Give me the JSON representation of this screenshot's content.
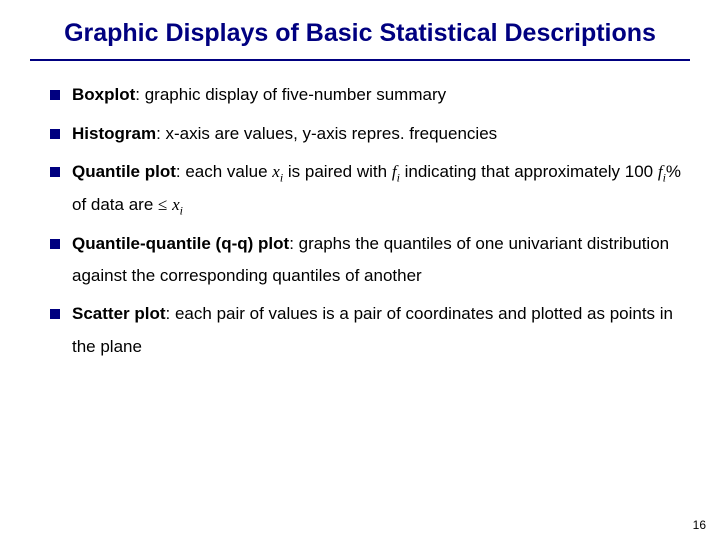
{
  "title": "Graphic Displays of Basic Statistical Descriptions",
  "bullets": [
    {
      "term": "Boxplot",
      "rest": ": graphic display of five-number summary"
    },
    {
      "term": "Histogram",
      "rest": ": x-axis are values, y-axis repres. frequencies"
    },
    {
      "term": "Quantile plot",
      "p1": ":  each value ",
      "x": "x",
      "i": "i",
      "p2": " is paired with ",
      "f": "f",
      "p3": " indicating that approximately 100 ",
      "p4": "% of data  are ",
      "le": "≤",
      "sp": " "
    },
    {
      "term": "Quantile-quantile (q-q) plot",
      "rest": ": graphs the quantiles of one univariant distribution against the corresponding quantiles of another"
    },
    {
      "term": "Scatter plot",
      "rest": ": each pair of values is a pair of coordinates and plotted as points in the plane"
    }
  ],
  "pagenum": "16",
  "colors": {
    "title": "#000080",
    "bullet": "#000080",
    "text": "#000000",
    "bg": "#ffffff"
  },
  "typography": {
    "title_fontsize": 25,
    "body_fontsize": 17,
    "pagenum_fontsize": 12,
    "title_weight": "bold"
  }
}
